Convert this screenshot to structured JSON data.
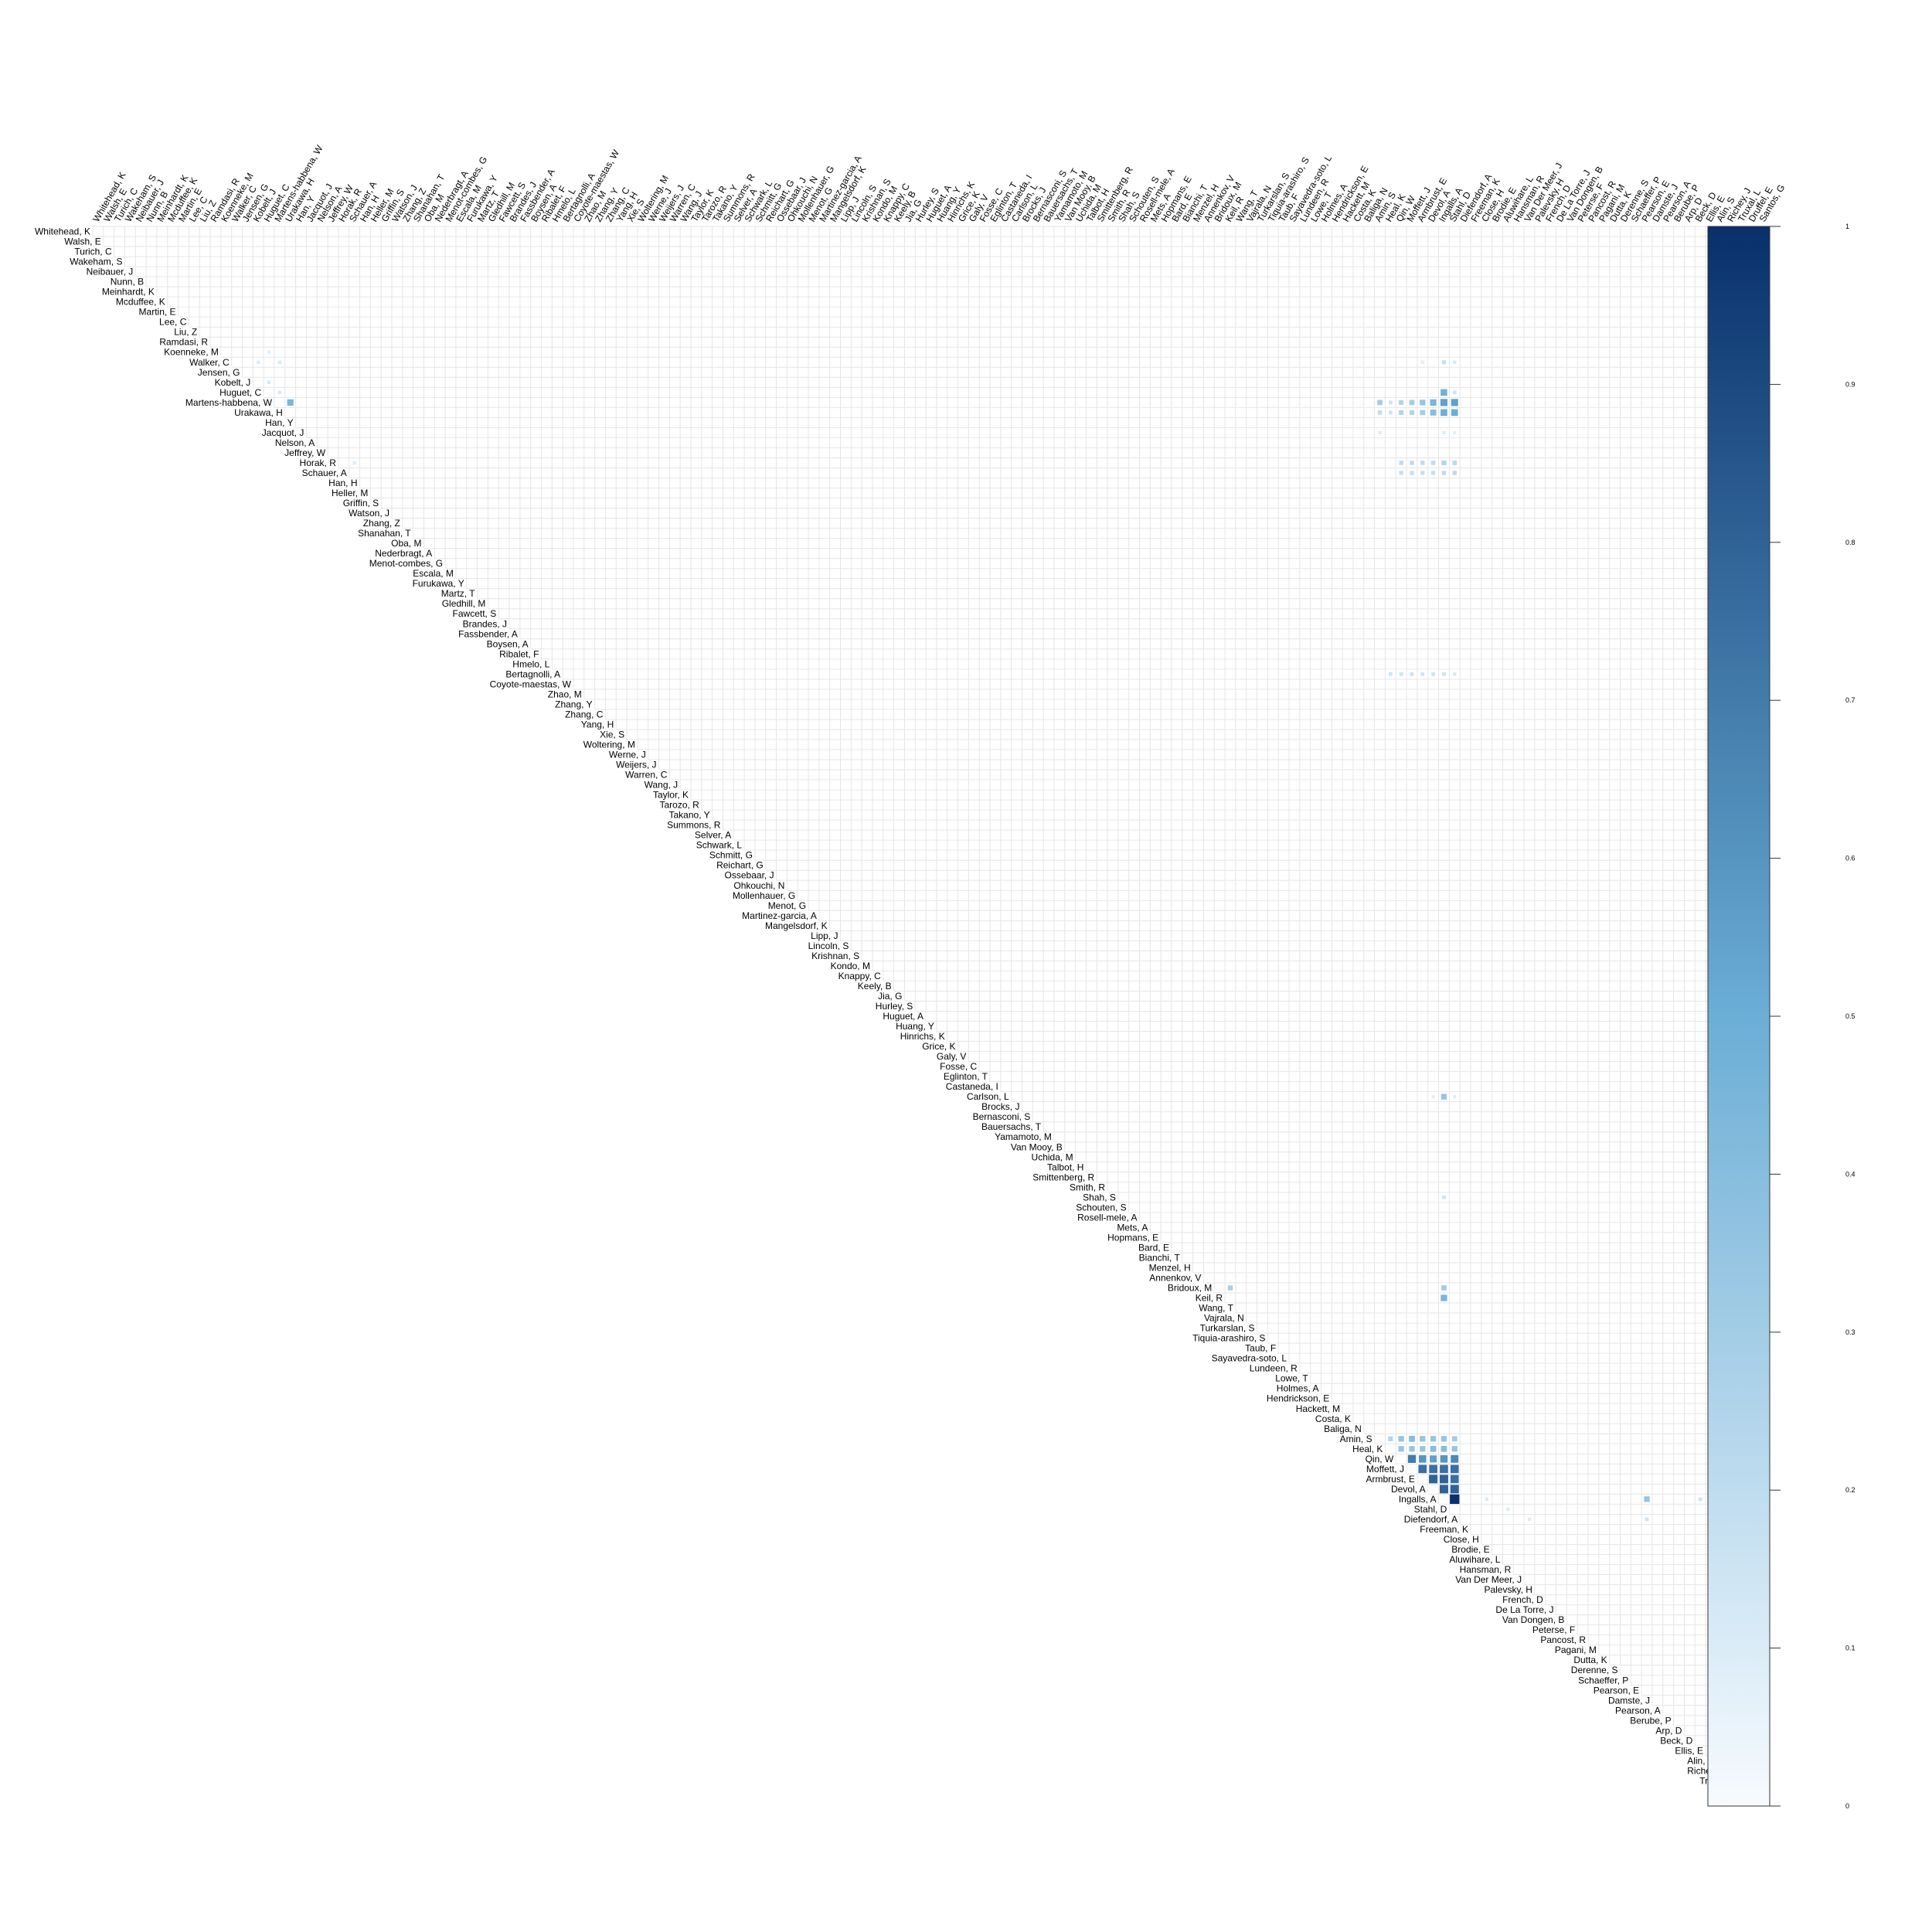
{
  "chart_data": {
    "type": "heatmap",
    "title": "",
    "xlabel": "",
    "ylabel": "",
    "layout": "upper-triangle correlation matrix",
    "labels": [
      "Whitehead, K",
      "Walsh, E",
      "Turich, C",
      "Wakeham, S",
      "Neibauer, J",
      "Nunn, B",
      "Meinhardt, K",
      "Mcduffee, K",
      "Martin, E",
      "Lee, C",
      "Liu, Z",
      "Ramdasi, R",
      "Koenneke, M",
      "Walker, C",
      "Jensen, G",
      "Kobelt, J",
      "Huguet, C",
      "Martens-habbena, W",
      "Urakawa, H",
      "Han, Y",
      "Jacquot, J",
      "Nelson, A",
      "Jeffrey, W",
      "Horak, R",
      "Schauer, A",
      "Han, H",
      "Heller, M",
      "Griffin, S",
      "Watson, J",
      "Zhang, Z",
      "Shanahan, T",
      "Oba, M",
      "Nederbragt, A",
      "Menot-combes, G",
      "Escala, M",
      "Furukawa, Y",
      "Martz, T",
      "Gledhill, M",
      "Fawcett, S",
      "Brandes, J",
      "Fassbender, A",
      "Boysen, A",
      "Ribalet, F",
      "Hmelo, L",
      "Bertagnolli, A",
      "Coyote-maestas, W",
      "Zhao, M",
      "Zhang, Y",
      "Zhang, C",
      "Yang, H",
      "Xie, S",
      "Woltering, M",
      "Werne, J",
      "Weijers, J",
      "Warren, C",
      "Wang, J",
      "Taylor, K",
      "Tarozo, R",
      "Takano, Y",
      "Summons, R",
      "Selver, A",
      "Schwark, L",
      "Schmitt, G",
      "Reichart, G",
      "Ossebaar, J",
      "Ohkouchi, N",
      "Mollenhauer, G",
      "Menot, G",
      "Martinez-garcia, A",
      "Mangelsdorf, K",
      "Lipp, J",
      "Lincoln, S",
      "Krishnan, S",
      "Kondo, M",
      "Knappy, C",
      "Keely, B",
      "Jia, G",
      "Hurley, S",
      "Huguet, A",
      "Huang, Y",
      "Hinrichs, K",
      "Grice, K",
      "Galy, V",
      "Fosse, C",
      "Eglinton, T",
      "Castaneda, I",
      "Carlson, L",
      "Brocks, J",
      "Bernasconi, S",
      "Bauersachs, T",
      "Yamamoto, M",
      "Van Mooy, B",
      "Uchida, M",
      "Talbot, H",
      "Smittenberg, R",
      "Smith, R",
      "Shah, S",
      "Schouten, S",
      "Rosell-mele, A",
      "Mets, A",
      "Hopmans, E",
      "Bard, E",
      "Bianchi, T",
      "Menzel, H",
      "Annenkov, V",
      "Bridoux, M",
      "Keil, R",
      "Wang, T",
      "Vajrala, N",
      "Turkarslan, S",
      "Tiquia-arashiro, S",
      "Taub, F",
      "Sayavedra-soto, L",
      "Lundeen, R",
      "Lowe, T",
      "Holmes, A",
      "Hendrickson, E",
      "Hackett, M",
      "Costa, K",
      "Baliga, N",
      "Amin, S",
      "Heal, K",
      "Qin, W",
      "Moffett, J",
      "Armbrust, E",
      "Devol, A",
      "Ingalls, A",
      "Stahl, D",
      "Diefendorf, A",
      "Freeman, K",
      "Close, H",
      "Brodie, E",
      "Aluwihare, L",
      "Hansman, R",
      "Van Der Meer, J",
      "Palevsky, H",
      "French, D",
      "De La Torre, J",
      "Van Dongen, B",
      "Peterse, F",
      "Pancost, R",
      "Pagani, M",
      "Dutta, K",
      "Derenne, S",
      "Schaeffer, P",
      "Pearson, E",
      "Damste, J",
      "Pearson, A",
      "Berube, P",
      "Arp, D",
      "Beck, D",
      "Ellis, E",
      "Alin, S",
      "Richey, J",
      "Truxal, L",
      "Druffel, E",
      "Santos, G"
    ],
    "cells": [
      {
        "row": "Koenneke, M",
        "col": "Huguet, C",
        "value": 0.08
      },
      {
        "row": "Walker, C",
        "col": "Kobelt, J",
        "value": 0.1
      },
      {
        "row": "Walker, C",
        "col": "Martens-habbena, W",
        "value": 0.12
      },
      {
        "row": "Walker, C",
        "col": "Armbrust, E",
        "value": 0.08
      },
      {
        "row": "Walker, C",
        "col": "Ingalls, A",
        "value": 0.18
      },
      {
        "row": "Walker, C",
        "col": "Stahl, D",
        "value": 0.12
      },
      {
        "row": "Huguet, C",
        "col": "Kobelt, J",
        "value": 0.12
      },
      {
        "row": "Huguet, C",
        "col": "Martens-habbena, W",
        "value": 0.12
      },
      {
        "row": "Huguet, C",
        "col": "Ingalls, A",
        "value": 0.48
      },
      {
        "row": "Huguet, C",
        "col": "Stahl, D",
        "value": 0.15
      },
      {
        "row": "Martens-habbena, W",
        "col": "Urakawa, H",
        "value": 0.45
      },
      {
        "row": "Martens-habbena, W",
        "col": "Amin, S",
        "value": 0.3
      },
      {
        "row": "Martens-habbena, W",
        "col": "Heal, K",
        "value": 0.15
      },
      {
        "row": "Martens-habbena, W",
        "col": "Qin, W",
        "value": 0.25
      },
      {
        "row": "Martens-habbena, W",
        "col": "Moffett, J",
        "value": 0.3
      },
      {
        "row": "Martens-habbena, W",
        "col": "Armbrust, E",
        "value": 0.35
      },
      {
        "row": "Martens-habbena, W",
        "col": "Devol, A",
        "value": 0.45
      },
      {
        "row": "Martens-habbena, W",
        "col": "Ingalls, A",
        "value": 0.55
      },
      {
        "row": "Martens-habbena, W",
        "col": "Stahl, D",
        "value": 0.55
      },
      {
        "row": "Urakawa, H",
        "col": "Amin, S",
        "value": 0.2
      },
      {
        "row": "Urakawa, H",
        "col": "Heal, K",
        "value": 0.15
      },
      {
        "row": "Urakawa, H",
        "col": "Qin, W",
        "value": 0.25
      },
      {
        "row": "Urakawa, H",
        "col": "Moffett, J",
        "value": 0.25
      },
      {
        "row": "Urakawa, H",
        "col": "Armbrust, E",
        "value": 0.3
      },
      {
        "row": "Urakawa, H",
        "col": "Devol, A",
        "value": 0.4
      },
      {
        "row": "Urakawa, H",
        "col": "Ingalls, A",
        "value": 0.5
      },
      {
        "row": "Urakawa, H",
        "col": "Stahl, D",
        "value": 0.5
      },
      {
        "row": "Jacquot, J",
        "col": "Amin, S",
        "value": 0.1
      },
      {
        "row": "Jacquot, J",
        "col": "Ingalls, A",
        "value": 0.1
      },
      {
        "row": "Jacquot, J",
        "col": "Stahl, D",
        "value": 0.08
      },
      {
        "row": "Horak, R",
        "col": "Schauer, A",
        "value": 0.1
      },
      {
        "row": "Horak, R",
        "col": "Qin, W",
        "value": 0.2
      },
      {
        "row": "Horak, R",
        "col": "Moffett, J",
        "value": 0.2
      },
      {
        "row": "Horak, R",
        "col": "Armbrust, E",
        "value": 0.2
      },
      {
        "row": "Horak, R",
        "col": "Devol, A",
        "value": 0.2
      },
      {
        "row": "Horak, R",
        "col": "Ingalls, A",
        "value": 0.25
      },
      {
        "row": "Horak, R",
        "col": "Stahl, D",
        "value": 0.22
      },
      {
        "row": "Schauer, A",
        "col": "Qin, W",
        "value": 0.18
      },
      {
        "row": "Schauer, A",
        "col": "Moffett, J",
        "value": 0.18
      },
      {
        "row": "Schauer, A",
        "col": "Armbrust, E",
        "value": 0.18
      },
      {
        "row": "Schauer, A",
        "col": "Devol, A",
        "value": 0.18
      },
      {
        "row": "Schauer, A",
        "col": "Ingalls, A",
        "value": 0.2
      },
      {
        "row": "Schauer, A",
        "col": "Stahl, D",
        "value": 0.2
      },
      {
        "row": "Bertagnolli, A",
        "col": "Heal, K",
        "value": 0.15
      },
      {
        "row": "Bertagnolli, A",
        "col": "Qin, W",
        "value": 0.15
      },
      {
        "row": "Bertagnolli, A",
        "col": "Moffett, J",
        "value": 0.15
      },
      {
        "row": "Bertagnolli, A",
        "col": "Armbrust, E",
        "value": 0.15
      },
      {
        "row": "Bertagnolli, A",
        "col": "Devol, A",
        "value": 0.15
      },
      {
        "row": "Bertagnolli, A",
        "col": "Ingalls, A",
        "value": 0.15
      },
      {
        "row": "Bertagnolli, A",
        "col": "Stahl, D",
        "value": 0.12
      },
      {
        "row": "Carlson, L",
        "col": "Ingalls, A",
        "value": 0.35
      },
      {
        "row": "Carlson, L",
        "col": "Devol, A",
        "value": 0.08
      },
      {
        "row": "Carlson, L",
        "col": "Stahl, D",
        "value": 0.08
      },
      {
        "row": "Shah, S",
        "col": "Ingalls, A",
        "value": 0.15
      },
      {
        "row": "Bridoux, M",
        "col": "Keil, R",
        "value": 0.28
      },
      {
        "row": "Bridoux, M",
        "col": "Ingalls, A",
        "value": 0.3
      },
      {
        "row": "Keil, R",
        "col": "Ingalls, A",
        "value": 0.45
      },
      {
        "row": "Amin, S",
        "col": "Heal, K",
        "value": 0.25
      },
      {
        "row": "Amin, S",
        "col": "Qin, W",
        "value": 0.35
      },
      {
        "row": "Amin, S",
        "col": "Moffett, J",
        "value": 0.4
      },
      {
        "row": "Amin, S",
        "col": "Armbrust, E",
        "value": 0.35
      },
      {
        "row": "Amin, S",
        "col": "Devol, A",
        "value": 0.35
      },
      {
        "row": "Amin, S",
        "col": "Ingalls, A",
        "value": 0.35
      },
      {
        "row": "Amin, S",
        "col": "Stahl, D",
        "value": 0.3
      },
      {
        "row": "Heal, K",
        "col": "Qin, W",
        "value": 0.35
      },
      {
        "row": "Heal, K",
        "col": "Moffett, J",
        "value": 0.35
      },
      {
        "row": "Heal, K",
        "col": "Armbrust, E",
        "value": 0.35
      },
      {
        "row": "Heal, K",
        "col": "Devol, A",
        "value": 0.4
      },
      {
        "row": "Heal, K",
        "col": "Ingalls, A",
        "value": 0.4
      },
      {
        "row": "Heal, K",
        "col": "Stahl, D",
        "value": 0.35
      },
      {
        "row": "Qin, W",
        "col": "Moffett, J",
        "value": 0.7
      },
      {
        "row": "Qin, W",
        "col": "Armbrust, E",
        "value": 0.6
      },
      {
        "row": "Qin, W",
        "col": "Devol, A",
        "value": 0.55
      },
      {
        "row": "Qin, W",
        "col": "Ingalls, A",
        "value": 0.6
      },
      {
        "row": "Qin, W",
        "col": "Stahl, D",
        "value": 0.65
      },
      {
        "row": "Moffett, J",
        "col": "Armbrust, E",
        "value": 0.75
      },
      {
        "row": "Moffett, J",
        "col": "Devol, A",
        "value": 0.75
      },
      {
        "row": "Moffett, J",
        "col": "Ingalls, A",
        "value": 0.75
      },
      {
        "row": "Moffett, J",
        "col": "Stahl, D",
        "value": 0.75
      },
      {
        "row": "Armbrust, E",
        "col": "Devol, A",
        "value": 0.8
      },
      {
        "row": "Armbrust, E",
        "col": "Ingalls, A",
        "value": 0.8
      },
      {
        "row": "Armbrust, E",
        "col": "Stahl, D",
        "value": 0.75
      },
      {
        "row": "Devol, A",
        "col": "Ingalls, A",
        "value": 0.8
      },
      {
        "row": "Devol, A",
        "col": "Stahl, D",
        "value": 0.8
      },
      {
        "row": "Ingalls, A",
        "col": "Stahl, D",
        "value": 1.0
      },
      {
        "row": "Ingalls, A",
        "col": "Pearson, E",
        "value": 0.35
      },
      {
        "row": "Ingalls, A",
        "col": "Richey, J",
        "value": 0.25
      },
      {
        "row": "Ingalls, A",
        "col": "Beck, D",
        "value": 0.15
      },
      {
        "row": "Ingalls, A",
        "col": "Ellis, E",
        "value": 0.12
      },
      {
        "row": "Ingalls, A",
        "col": "Truxal, L",
        "value": 0.12
      },
      {
        "row": "Ingalls, A",
        "col": "Close, H",
        "value": 0.12
      },
      {
        "row": "Stahl, D",
        "col": "Aluwihare, L",
        "value": 0.1
      },
      {
        "row": "Diefendorf, A",
        "col": "Van Der Meer, J",
        "value": 0.1
      },
      {
        "row": "Diefendorf, A",
        "col": "Pearson, E",
        "value": 0.15
      },
      {
        "row": "Keil, R",
        "col": "Ellis, E",
        "value": 0.1
      },
      {
        "row": "Keil, R",
        "col": "Alin, S",
        "value": 0.1
      },
      {
        "row": "Keil, R",
        "col": "Richey, J",
        "value": 0.1
      },
      {
        "row": "Keil, R",
        "col": "Truxal, L",
        "value": 0.1
      },
      {
        "row": "Keil, R",
        "col": "Druffel, E",
        "value": 0.08
      },
      {
        "row": "Keil, R",
        "col": "Santos, G",
        "value": 0.08
      }
    ],
    "legend": {
      "position": "right",
      "type": "colorbar",
      "min": 0,
      "max": 1,
      "ticks": [
        "0",
        "0.1",
        "0.2",
        "0.3",
        "0.4",
        "0.5",
        "0.6",
        "0.7",
        "0.8",
        "0.9",
        "1"
      ]
    },
    "colors": {
      "low": "#f7fbff",
      "mid": "#6baed6",
      "high": "#08306b",
      "grid": "#e6e6e6"
    },
    "grid": true
  }
}
